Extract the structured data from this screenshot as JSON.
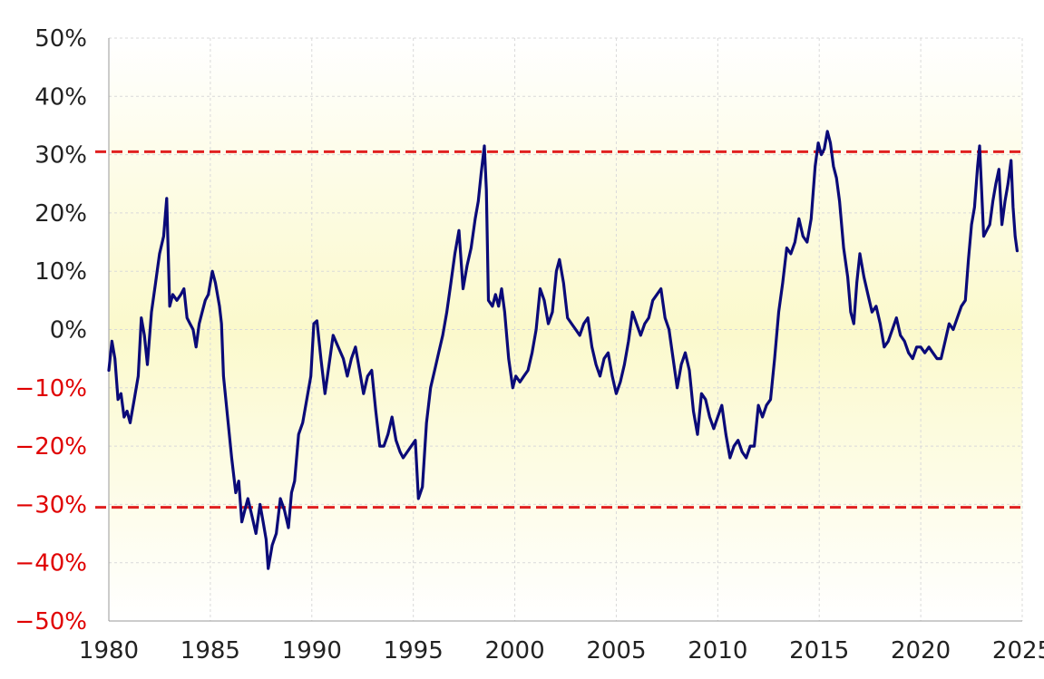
{
  "chart_data": {
    "type": "line",
    "title": "",
    "xlabel": "",
    "ylabel": "",
    "xlim": [
      1980,
      2025
    ],
    "ylim": [
      -50,
      50
    ],
    "x_ticks": [
      1980,
      1985,
      1990,
      1995,
      2000,
      2005,
      2010,
      2015,
      2020,
      2025
    ],
    "x_tick_labels": [
      "1980",
      "1985",
      "1990",
      "1995",
      "2000",
      "2005",
      "2010",
      "2015",
      "2020",
      "2025"
    ],
    "y_ticks": [
      50,
      40,
      30,
      20,
      10,
      0,
      -10,
      -20,
      -30,
      -40,
      -50
    ],
    "y_tick_labels": [
      "50%",
      "40%",
      "30%",
      "20%",
      "10%",
      "0%",
      "−10%",
      "−20%",
      "−30%",
      "−40%",
      "−50%"
    ],
    "grid": true,
    "background": "yellow gradient",
    "reference_lines": [
      {
        "y": 30.5,
        "style": "dashed",
        "color": "#e02020"
      },
      {
        "y": -30.5,
        "style": "dashed",
        "color": "#e02020"
      }
    ],
    "colors": {
      "series": "#0a0a78",
      "positive_tick": "#222222",
      "negative_tick": "#e00000",
      "grid": "#d9d9d9",
      "reference": "#e02020"
    },
    "series": [
      {
        "points": [
          [
            1980.0,
            -7
          ],
          [
            1980.15,
            -2
          ],
          [
            1980.3,
            -5
          ],
          [
            1980.45,
            -12
          ],
          [
            1980.6,
            -11
          ],
          [
            1980.75,
            -15
          ],
          [
            1980.9,
            -14
          ],
          [
            1981.05,
            -16
          ],
          [
            1981.25,
            -12
          ],
          [
            1981.45,
            -8
          ],
          [
            1981.6,
            2
          ],
          [
            1981.75,
            -1
          ],
          [
            1981.9,
            -6
          ],
          [
            1982.1,
            3
          ],
          [
            1982.3,
            8
          ],
          [
            1982.5,
            13
          ],
          [
            1982.7,
            16
          ],
          [
            1982.85,
            22.5
          ],
          [
            1983.0,
            4
          ],
          [
            1983.15,
            6
          ],
          [
            1983.35,
            5
          ],
          [
            1983.55,
            6
          ],
          [
            1983.7,
            7
          ],
          [
            1983.85,
            2
          ],
          [
            1984.0,
            1
          ],
          [
            1984.15,
            0
          ],
          [
            1984.3,
            -3
          ],
          [
            1984.45,
            1
          ],
          [
            1984.6,
            3
          ],
          [
            1984.75,
            5
          ],
          [
            1984.9,
            6
          ],
          [
            1985.1,
            10
          ],
          [
            1985.25,
            8
          ],
          [
            1985.45,
            4
          ],
          [
            1985.55,
            1
          ],
          [
            1985.65,
            -8
          ],
          [
            1985.85,
            -15
          ],
          [
            1986.05,
            -22
          ],
          [
            1986.25,
            -28
          ],
          [
            1986.4,
            -26
          ],
          [
            1986.55,
            -33
          ],
          [
            1986.7,
            -31
          ],
          [
            1986.85,
            -29
          ],
          [
            1987.05,
            -32
          ],
          [
            1987.25,
            -35
          ],
          [
            1987.45,
            -30
          ],
          [
            1987.6,
            -33
          ],
          [
            1987.75,
            -36
          ],
          [
            1987.85,
            -41
          ],
          [
            1988.05,
            -37
          ],
          [
            1988.25,
            -35
          ],
          [
            1988.45,
            -29
          ],
          [
            1988.65,
            -31
          ],
          [
            1988.85,
            -34
          ],
          [
            1989.0,
            -28
          ],
          [
            1989.15,
            -26
          ],
          [
            1989.35,
            -18
          ],
          [
            1989.55,
            -16
          ],
          [
            1989.75,
            -12
          ],
          [
            1989.95,
            -8
          ],
          [
            1990.1,
            1
          ],
          [
            1990.25,
            1.5
          ],
          [
            1990.45,
            -5
          ],
          [
            1990.65,
            -11
          ],
          [
            1990.85,
            -6
          ],
          [
            1991.05,
            -1
          ],
          [
            1991.3,
            -3
          ],
          [
            1991.55,
            -5
          ],
          [
            1991.75,
            -8
          ],
          [
            1991.95,
            -5
          ],
          [
            1992.15,
            -3
          ],
          [
            1992.35,
            -7
          ],
          [
            1992.55,
            -11
          ],
          [
            1992.75,
            -8
          ],
          [
            1992.95,
            -7
          ],
          [
            1993.15,
            -14
          ],
          [
            1993.35,
            -20
          ],
          [
            1993.55,
            -20
          ],
          [
            1993.75,
            -18
          ],
          [
            1993.95,
            -15
          ],
          [
            1994.15,
            -19
          ],
          [
            1994.35,
            -21
          ],
          [
            1994.5,
            -22
          ],
          [
            1994.7,
            -21
          ],
          [
            1994.9,
            -20
          ],
          [
            1995.1,
            -19
          ],
          [
            1995.25,
            -29
          ],
          [
            1995.45,
            -27
          ],
          [
            1995.65,
            -16
          ],
          [
            1995.85,
            -10
          ],
          [
            1996.05,
            -7
          ],
          [
            1996.25,
            -4
          ],
          [
            1996.45,
            -1
          ],
          [
            1996.65,
            3
          ],
          [
            1996.85,
            8
          ],
          [
            1997.05,
            13
          ],
          [
            1997.25,
            17
          ],
          [
            1997.45,
            7
          ],
          [
            1997.65,
            11
          ],
          [
            1997.85,
            14
          ],
          [
            1998.05,
            19
          ],
          [
            1998.2,
            22
          ],
          [
            1998.35,
            27
          ],
          [
            1998.5,
            31.5
          ],
          [
            1998.6,
            24
          ],
          [
            1998.7,
            5
          ],
          [
            1998.9,
            4
          ],
          [
            1999.05,
            6
          ],
          [
            1999.2,
            4
          ],
          [
            1999.35,
            7
          ],
          [
            1999.5,
            3
          ],
          [
            1999.7,
            -5
          ],
          [
            1999.9,
            -10
          ],
          [
            2000.05,
            -8
          ],
          [
            2000.25,
            -9
          ],
          [
            2000.45,
            -8
          ],
          [
            2000.65,
            -7
          ],
          [
            2000.85,
            -4
          ],
          [
            2001.05,
            0
          ],
          [
            2001.25,
            7
          ],
          [
            2001.45,
            5
          ],
          [
            2001.65,
            1
          ],
          [
            2001.85,
            3
          ],
          [
            2002.05,
            10
          ],
          [
            2002.2,
            12
          ],
          [
            2002.4,
            8
          ],
          [
            2002.6,
            2
          ],
          [
            2002.8,
            1
          ],
          [
            2003.0,
            0
          ],
          [
            2003.2,
            -1
          ],
          [
            2003.4,
            1
          ],
          [
            2003.6,
            2
          ],
          [
            2003.8,
            -3
          ],
          [
            2004.0,
            -6
          ],
          [
            2004.2,
            -8
          ],
          [
            2004.4,
            -5
          ],
          [
            2004.6,
            -4
          ],
          [
            2004.8,
            -8
          ],
          [
            2005.0,
            -11
          ],
          [
            2005.2,
            -9
          ],
          [
            2005.4,
            -6
          ],
          [
            2005.6,
            -2
          ],
          [
            2005.8,
            3
          ],
          [
            2006.0,
            1
          ],
          [
            2006.2,
            -1
          ],
          [
            2006.4,
            1
          ],
          [
            2006.6,
            2
          ],
          [
            2006.8,
            5
          ],
          [
            2007.0,
            6
          ],
          [
            2007.2,
            7
          ],
          [
            2007.4,
            2
          ],
          [
            2007.6,
            0
          ],
          [
            2007.8,
            -5
          ],
          [
            2008.0,
            -10
          ],
          [
            2008.2,
            -6
          ],
          [
            2008.4,
            -4
          ],
          [
            2008.6,
            -7
          ],
          [
            2008.8,
            -14
          ],
          [
            2009.0,
            -18
          ],
          [
            2009.2,
            -11
          ],
          [
            2009.4,
            -12
          ],
          [
            2009.6,
            -15
          ],
          [
            2009.8,
            -17
          ],
          [
            2010.0,
            -15
          ],
          [
            2010.2,
            -13
          ],
          [
            2010.4,
            -18
          ],
          [
            2010.6,
            -22
          ],
          [
            2010.8,
            -20
          ],
          [
            2011.0,
            -19
          ],
          [
            2011.2,
            -21
          ],
          [
            2011.4,
            -22
          ],
          [
            2011.6,
            -20
          ],
          [
            2011.8,
            -20
          ],
          [
            2012.0,
            -13
          ],
          [
            2012.2,
            -15
          ],
          [
            2012.4,
            -13
          ],
          [
            2012.6,
            -12
          ],
          [
            2012.8,
            -5
          ],
          [
            2013.0,
            3
          ],
          [
            2013.2,
            8
          ],
          [
            2013.4,
            14
          ],
          [
            2013.6,
            13
          ],
          [
            2013.8,
            15
          ],
          [
            2014.0,
            19
          ],
          [
            2014.2,
            16
          ],
          [
            2014.4,
            15
          ],
          [
            2014.6,
            19
          ],
          [
            2014.8,
            28
          ],
          [
            2014.95,
            32
          ],
          [
            2015.1,
            30
          ],
          [
            2015.25,
            31
          ],
          [
            2015.4,
            34
          ],
          [
            2015.55,
            32
          ],
          [
            2015.7,
            28
          ],
          [
            2015.85,
            26
          ],
          [
            2016.0,
            22
          ],
          [
            2016.2,
            14
          ],
          [
            2016.4,
            9
          ],
          [
            2016.55,
            3
          ],
          [
            2016.7,
            1
          ],
          [
            2016.85,
            8
          ],
          [
            2017.0,
            13
          ],
          [
            2017.2,
            9
          ],
          [
            2017.4,
            6
          ],
          [
            2017.6,
            3
          ],
          [
            2017.8,
            4
          ],
          [
            2018.0,
            1
          ],
          [
            2018.2,
            -3
          ],
          [
            2018.4,
            -2
          ],
          [
            2018.6,
            0
          ],
          [
            2018.8,
            2
          ],
          [
            2019.0,
            -1
          ],
          [
            2019.2,
            -2
          ],
          [
            2019.4,
            -4
          ],
          [
            2019.6,
            -5
          ],
          [
            2019.8,
            -3
          ],
          [
            2020.0,
            -3
          ],
          [
            2020.2,
            -4
          ],
          [
            2020.4,
            -3
          ],
          [
            2020.6,
            -4
          ],
          [
            2020.8,
            -5
          ],
          [
            2021.0,
            -5
          ],
          [
            2021.2,
            -2
          ],
          [
            2021.4,
            1
          ],
          [
            2021.6,
            0
          ],
          [
            2021.8,
            2
          ],
          [
            2022.0,
            4
          ],
          [
            2022.2,
            5
          ],
          [
            2022.35,
            12
          ],
          [
            2022.5,
            18
          ],
          [
            2022.65,
            21
          ],
          [
            2022.8,
            28
          ],
          [
            2022.9,
            31.5
          ],
          [
            2023.0,
            24
          ],
          [
            2023.1,
            16
          ],
          [
            2023.25,
            17
          ],
          [
            2023.4,
            18
          ],
          [
            2023.55,
            22
          ],
          [
            2023.7,
            25
          ],
          [
            2023.85,
            27.5
          ],
          [
            2024.0,
            18
          ],
          [
            2024.15,
            22
          ],
          [
            2024.3,
            25
          ],
          [
            2024.45,
            29
          ],
          [
            2024.55,
            21
          ],
          [
            2024.65,
            16
          ],
          [
            2024.75,
            13.5
          ]
        ]
      }
    ]
  }
}
